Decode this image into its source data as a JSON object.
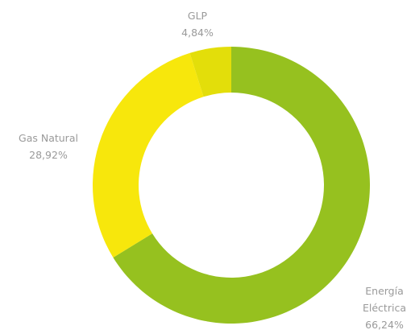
{
  "chart_data": {
    "type": "donut",
    "categories": [
      "Energía Eléctrica",
      "Gas Natural",
      "GLP"
    ],
    "values": [
      66.24,
      28.92,
      4.84
    ],
    "value_labels": [
      "66,24%",
      "28,92%",
      "4,84%"
    ],
    "colors": [
      "#96c11f",
      "#f7e70c",
      "#e3de0a"
    ]
  }
}
